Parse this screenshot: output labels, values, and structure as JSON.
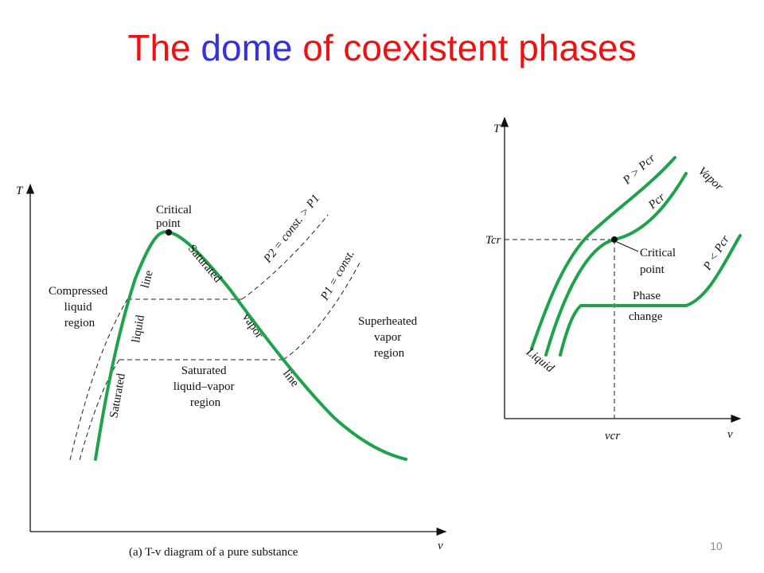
{
  "title": {
    "part1": "The",
    "part2": "dome",
    "part3": "of coexistent phases"
  },
  "left_diagram": {
    "caption": "(a) T-v diagram of a pure substance",
    "y_axis": "T",
    "x_axis": "v",
    "critical_point": [
      "Critical",
      "point"
    ],
    "compressed_liquid_region": [
      "Compressed",
      "liquid",
      "region"
    ],
    "superheated_vapor_region": [
      "Superheated",
      "vapor",
      "region"
    ],
    "saturated_mixture_region": [
      "Saturated",
      "liquid–vapor",
      "region"
    ],
    "sat_liquid_line_words": [
      "Saturated",
      "liquid",
      "line"
    ],
    "sat_vapor_line_words": [
      "Saturated",
      "vapor",
      "line"
    ],
    "isobar_p2": "P2 = const. > P1",
    "isobar_p1": "P1 = const."
  },
  "right_diagram": {
    "y_axis": "T",
    "x_axis": "v",
    "t_cr": "Tcr",
    "v_cr": "vcr",
    "curve_above": "P > Pcr",
    "curve_critical": "Pcr",
    "curve_below": "P < Pcr",
    "vapor": "Vapor",
    "liquid": "Liquid",
    "critical_point": [
      "Critical",
      "point"
    ],
    "phase_change": [
      "Phase",
      "change"
    ]
  },
  "page_number": "10",
  "colors": {
    "title_red": "#ee1111",
    "title_blue": "#3333dd",
    "curve_green": "#1ea34a"
  }
}
